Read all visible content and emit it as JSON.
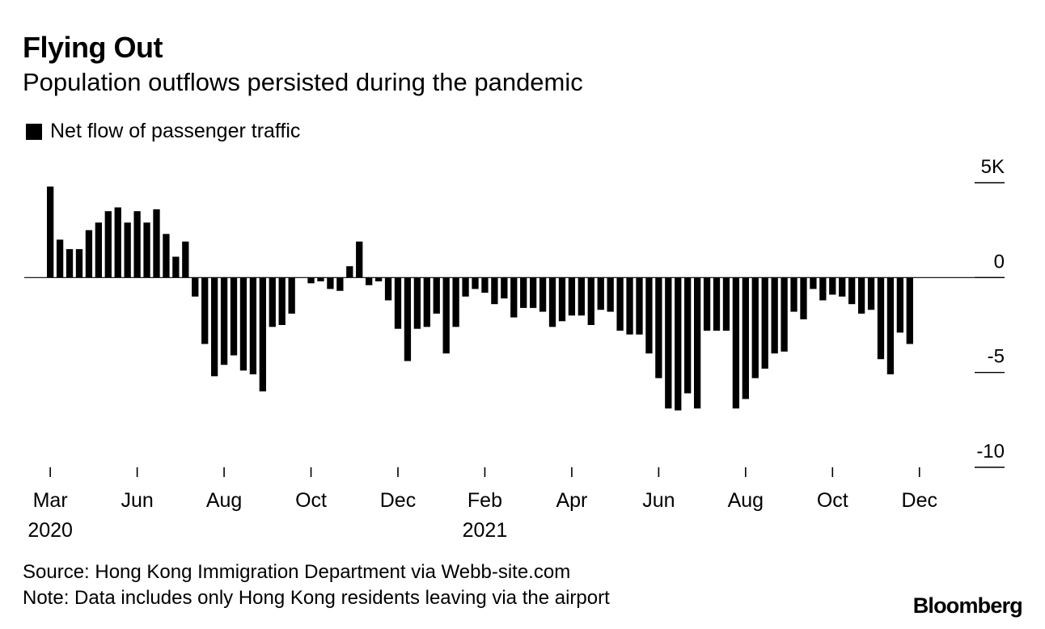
{
  "header": {
    "title": "Flying Out",
    "subtitle": "Population outflows persisted during the pandemic"
  },
  "legend": {
    "label": "Net flow of passenger traffic",
    "color": "#000000"
  },
  "footer": {
    "source": "Source: Hong Kong Immigration Department via Webb-site.com",
    "note": "Note: Data includes only Hong Kong residents leaving via the airport",
    "brand": "Bloomberg"
  },
  "chart_data": {
    "type": "bar",
    "title": "Flying Out",
    "subtitle": "Population outflows persisted during the pandemic",
    "series": [
      {
        "name": "Net flow of passenger traffic",
        "frequency": "weekly",
        "start": "Mar 2020",
        "values": [
          4.8,
          2.0,
          1.5,
          1.5,
          2.5,
          2.9,
          3.5,
          3.7,
          2.9,
          3.5,
          2.9,
          3.6,
          2.3,
          1.1,
          1.9,
          -1.0,
          -3.5,
          -5.2,
          -4.6,
          -4.1,
          -4.9,
          -5.1,
          -6.0,
          -2.6,
          -2.5,
          -1.9,
          0,
          -0.3,
          -0.2,
          -0.6,
          -0.7,
          0.6,
          1.9,
          -0.4,
          -0.2,
          -1.2,
          -2.7,
          -4.4,
          -2.7,
          -2.6,
          -1.9,
          -4.0,
          -2.6,
          -1.0,
          -0.6,
          -0.8,
          -1.4,
          -1.1,
          -2.1,
          -1.6,
          -1.6,
          -1.8,
          -2.6,
          -2.3,
          -2.0,
          -2.0,
          -2.5,
          -1.7,
          -1.8,
          -2.8,
          -3.0,
          -3.0,
          -4.0,
          -5.3,
          -6.9,
          -7.0,
          -6.1,
          -6.9,
          -2.8,
          -2.8,
          -2.8,
          -6.9,
          -6.4,
          -5.3,
          -4.8,
          -4.0,
          -3.9,
          -1.8,
          -2.2,
          -0.6,
          -1.2,
          -0.9,
          -1.0,
          -1.4,
          -1.9,
          -1.7,
          -4.3,
          -5.1,
          -2.9,
          -3.5
        ]
      }
    ],
    "x_ticks": [
      {
        "label": "Mar",
        "year": "2020",
        "index": 0
      },
      {
        "label": "Jun",
        "year": "",
        "index": 9
      },
      {
        "label": "Aug",
        "year": "",
        "index": 18
      },
      {
        "label": "Oct",
        "year": "",
        "index": 27
      },
      {
        "label": "Dec",
        "year": "",
        "index": 36
      },
      {
        "label": "Feb",
        "year": "2021",
        "index": 45
      },
      {
        "label": "Apr",
        "year": "",
        "index": 54
      },
      {
        "label": "Jun",
        "year": "",
        "index": 63
      },
      {
        "label": "Aug",
        "year": "",
        "index": 72
      },
      {
        "label": "Oct",
        "year": "",
        "index": 81
      },
      {
        "label": "Dec",
        "year": "",
        "index": 90
      }
    ],
    "y_ticks": [
      {
        "value": 5,
        "label": "5K"
      },
      {
        "value": 0,
        "label": "0"
      },
      {
        "value": -5,
        "label": "-5"
      },
      {
        "value": -10,
        "label": "-10"
      }
    ],
    "ylim": [
      -10,
      5
    ],
    "ylabel": "",
    "xlabel": "",
    "grid": false,
    "legend_position": "top-left"
  }
}
